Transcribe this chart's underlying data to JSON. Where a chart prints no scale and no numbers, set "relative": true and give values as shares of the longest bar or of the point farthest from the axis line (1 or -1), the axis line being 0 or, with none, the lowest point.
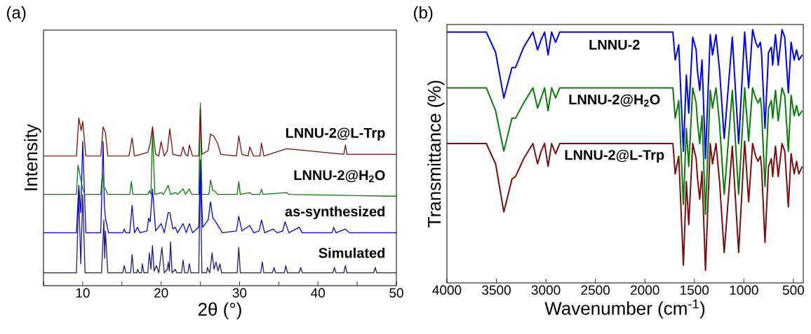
{
  "chart_data": [
    {
      "type": "line",
      "relative": true,
      "xlabel": "2θ (°)",
      "ylabel": "Intensity",
      "annotations": [
        "(a)"
      ],
      "xlim": [
        5,
        50
      ],
      "xticks": [
        {
          "value": 5,
          "label": null
        },
        10,
        {
          "value": 15,
          "label": null
        },
        20,
        {
          "value": 25,
          "label": null
        },
        30,
        {
          "value": 35,
          "label": null
        },
        40,
        {
          "value": 45,
          "label": null
        },
        50
      ],
      "series": [
        {
          "name": "Simulated",
          "color": "#1b1b80",
          "x": [
            5,
            9.2,
            9.5,
            9.75,
            10.0,
            10.3,
            12.4,
            12.7,
            12.8,
            12.9,
            13.2,
            15.1,
            15.3,
            15.5,
            16.1,
            16.3,
            16.5,
            16.9,
            17.0,
            17.2,
            17.5,
            17.6,
            17.8,
            18.3,
            18.5,
            18.7,
            18.9,
            19.1,
            19.4,
            19.7,
            20.1,
            20.4,
            20.8,
            20.9,
            21.05,
            21.2,
            21.4,
            21.8,
            22.0,
            22.6,
            22.8,
            23.0,
            23.4,
            23.6,
            23.8,
            24.8,
            25.0,
            25.2,
            25.8,
            25.9,
            26.2,
            26.5,
            26.75,
            27.0,
            27.25,
            27.5,
            27.7,
            29.7,
            29.9,
            30.1,
            32.7,
            32.9,
            33.1,
            34.2,
            34.4,
            34.6,
            35.7,
            35.9,
            36.1,
            37.6,
            37.8,
            38.0,
            41.9,
            42.1,
            42.3,
            43.3,
            43.5,
            43.7,
            47.1,
            47.3,
            47.5,
            50
          ],
          "values": [
            0.07,
            0.07,
            0.5,
            0.12,
            0.5,
            0.07,
            0.07,
            0.36,
            0.15,
            0.3,
            0.07,
            0.07,
            0.11,
            0.07,
            0.07,
            0.17,
            0.07,
            0.07,
            0.09,
            0.07,
            0.07,
            0.12,
            0.07,
            0.07,
            0.18,
            0.09,
            0.22,
            0.08,
            0.11,
            0.07,
            0.21,
            0.07,
            0.09,
            0.13,
            0.08,
            0.24,
            0.07,
            0.09,
            0.07,
            0.07,
            0.14,
            0.07,
            0.07,
            0.12,
            0.07,
            0.07,
            0.69,
            0.07,
            0.07,
            0.1,
            0.07,
            0.18,
            0.09,
            0.13,
            0.08,
            0.12,
            0.07,
            0.07,
            0.21,
            0.07,
            0.07,
            0.13,
            0.07,
            0.07,
            0.1,
            0.07,
            0.07,
            0.11,
            0.07,
            0.07,
            0.1,
            0.07,
            0.07,
            0.1,
            0.07,
            0.07,
            0.11,
            0.07,
            0.07,
            0.1,
            0.07,
            0.07
          ]
        },
        {
          "name": "as-synthesized",
          "color": "#0000ff",
          "x": [
            5,
            9.2,
            9.5,
            9.75,
            10.0,
            10.4,
            12.3,
            12.6,
            12.75,
            12.9,
            13.3,
            15.1,
            15.3,
            15.5,
            16.0,
            16.3,
            16.6,
            17.0,
            17.3,
            18.2,
            18.4,
            18.6,
            18.9,
            19.3,
            20.0,
            20.4,
            20.9,
            21.1,
            21.5,
            21.8,
            22.1,
            22.8,
            23.2,
            23.6,
            24.0,
            24.8,
            25.0,
            25.3,
            26.0,
            26.3,
            26.6,
            26.8,
            27.4,
            27.8,
            29.6,
            29.9,
            30.3,
            31.3,
            31.8,
            32.5,
            32.8,
            33.2,
            34.3,
            34.8,
            35.5,
            35.8,
            36.3,
            37.6,
            38.0,
            41.8,
            42.0,
            42.3,
            43.5,
            44.0,
            50
          ],
          "values": [
            0.29,
            0.29,
            0.55,
            0.4,
            0.79,
            0.29,
            0.29,
            0.79,
            0.45,
            0.37,
            0.29,
            0.29,
            0.31,
            0.29,
            0.29,
            0.44,
            0.29,
            0.32,
            0.29,
            0.3,
            0.37,
            0.35,
            0.53,
            0.3,
            0.34,
            0.29,
            0.4,
            0.4,
            0.31,
            0.32,
            0.29,
            0.34,
            0.29,
            0.34,
            0.29,
            0.32,
            0.68,
            0.32,
            0.36,
            0.46,
            0.37,
            0.36,
            0.32,
            0.29,
            0.3,
            0.38,
            0.3,
            0.33,
            0.29,
            0.3,
            0.36,
            0.29,
            0.31,
            0.29,
            0.3,
            0.35,
            0.29,
            0.32,
            0.29,
            0.29,
            0.32,
            0.29,
            0.31,
            0.29,
            0.29
          ]
        },
        {
          "name": "LNNU-2@H$_{2}$O",
          "color": "#0b7b0b",
          "x": [
            5,
            9.2,
            9.4,
            9.6,
            10.0,
            10.3,
            12.3,
            12.5,
            12.7,
            12.9,
            13.2,
            16.0,
            16.2,
            16.4,
            18.3,
            18.5,
            18.7,
            18.9,
            19.2,
            20.0,
            20.3,
            20.9,
            21.2,
            21.8,
            22.1,
            22.8,
            23.1,
            23.6,
            23.9,
            24.8,
            25.0,
            25.2,
            26.1,
            26.3,
            26.6,
            26.8,
            27.2,
            29.7,
            29.9,
            30.1,
            31.3,
            31.6,
            32.6,
            32.8,
            33.0,
            36.0,
            36.3,
            50
          ],
          "values": [
            0.5,
            0.5,
            0.66,
            0.62,
            0.53,
            0.5,
            0.5,
            0.61,
            0.54,
            0.53,
            0.5,
            0.5,
            0.57,
            0.5,
            0.5,
            0.52,
            0.5,
            0.85,
            0.5,
            0.51,
            0.5,
            0.55,
            0.5,
            0.51,
            0.5,
            0.53,
            0.5,
            0.53,
            0.5,
            0.5,
            1.0,
            0.5,
            0.5,
            0.58,
            0.52,
            0.52,
            0.5,
            0.5,
            0.57,
            0.5,
            0.51,
            0.5,
            0.5,
            0.53,
            0.5,
            0.51,
            0.5,
            0.49
          ]
        },
        {
          "name": "LNNU-2@L-Trp",
          "color": "#7b0f0f",
          "x": [
            5,
            9.2,
            9.5,
            9.8,
            10.0,
            10.4,
            12.3,
            12.6,
            12.9,
            13.2,
            15.9,
            16.3,
            16.6,
            18.3,
            18.6,
            18.9,
            19.3,
            19.7,
            20.0,
            20.4,
            20.8,
            21.1,
            21.5,
            22.5,
            22.8,
            23.1,
            23.4,
            23.6,
            24.0,
            24.8,
            25.0,
            25.2,
            26.0,
            26.3,
            26.7,
            27.2,
            27.6,
            29.6,
            29.9,
            30.3,
            31.1,
            31.3,
            31.8,
            32.6,
            32.8,
            33.1,
            36.0,
            43.3,
            43.5,
            43.7,
            50
          ],
          "values": [
            0.71,
            0.71,
            0.92,
            0.85,
            0.9,
            0.71,
            0.71,
            0.87,
            0.84,
            0.71,
            0.71,
            0.81,
            0.71,
            0.73,
            0.78,
            0.87,
            0.72,
            0.71,
            0.79,
            0.71,
            0.74,
            0.86,
            0.72,
            0.71,
            0.76,
            0.72,
            0.71,
            0.77,
            0.71,
            0.71,
            0.97,
            0.72,
            0.74,
            0.83,
            0.82,
            0.78,
            0.72,
            0.71,
            0.82,
            0.72,
            0.71,
            0.76,
            0.71,
            0.71,
            0.78,
            0.71,
            0.75,
            0.72,
            0.77,
            0.72,
            0.72
          ]
        }
      ]
    },
    {
      "type": "line",
      "relative": true,
      "xlabel": "Wavenumber (cm$^{-1}$)",
      "ylabel": "Transmittance (%)",
      "annotations": [
        "(b)"
      ],
      "xlim": [
        4000,
        400
      ],
      "xticks": [
        4000,
        3500,
        3000,
        2500,
        2000,
        1500,
        1000,
        500
      ],
      "x": [
        4000,
        3602,
        3508,
        3425,
        3343,
        3307,
        3225,
        3131,
        3084,
        3048,
        3013,
        2978,
        2942,
        2902,
        2860,
        1717,
        1694,
        1658,
        1611,
        1581,
        1557,
        1517,
        1482,
        1470,
        1446,
        1423,
        1388,
        1340,
        1317,
        1282,
        1246,
        1199,
        1117,
        1053,
        992,
        952,
        912,
        881,
        857,
        834,
        822,
        787,
        751,
        723,
        709,
        681,
        653,
        615,
        587,
        551,
        523,
        492,
        468,
        445,
        410
      ],
      "series": [
        {
          "name": "LNNU-2",
          "color": "#0000ff",
          "values": [
            0.99,
            0.99,
            0.91,
            0.73,
            0.85,
            0.85,
            0.93,
            0.99,
            0.92,
            0.96,
            0.99,
            0.9,
            0.99,
            0.95,
            0.99,
            0.99,
            0.88,
            0.94,
            0.52,
            0.82,
            0.67,
            0.97,
            0.92,
            0.84,
            0.76,
            0.88,
            0.49,
            0.98,
            0.9,
            0.98,
            0.84,
            0.57,
            0.97,
            0.55,
            0.99,
            0.77,
            1.0,
            0.95,
            0.93,
            0.95,
            0.91,
            0.61,
            0.91,
            0.93,
            0.86,
            0.98,
            0.86,
            1.0,
            0.97,
            0.75,
            0.95,
            0.88,
            0.92,
            0.88,
            0.9
          ]
        },
        {
          "name": "LNNU-2@H$_{2}$O",
          "color": "#0b7b0b",
          "values": [
            0.77,
            0.77,
            0.68,
            0.52,
            0.65,
            0.65,
            0.71,
            0.77,
            0.69,
            0.73,
            0.77,
            0.68,
            0.77,
            0.73,
            0.77,
            0.77,
            0.65,
            0.72,
            0.31,
            0.61,
            0.46,
            0.77,
            0.71,
            0.64,
            0.55,
            0.66,
            0.27,
            0.76,
            0.69,
            0.77,
            0.63,
            0.35,
            0.76,
            0.35,
            0.77,
            0.56,
            0.77,
            0.73,
            0.71,
            0.73,
            0.69,
            0.38,
            0.69,
            0.72,
            0.65,
            0.76,
            0.64,
            0.77,
            0.74,
            0.52,
            0.74,
            0.66,
            0.7,
            0.66,
            0.68
          ]
        },
        {
          "name": "LNNU-2@L-Trp",
          "color": "#7b0f0f",
          "values": [
            0.55,
            0.55,
            0.47,
            0.28,
            0.41,
            0.42,
            0.49,
            0.55,
            0.47,
            0.52,
            0.55,
            0.46,
            0.55,
            0.51,
            0.55,
            0.55,
            0.43,
            0.5,
            0.07,
            0.4,
            0.23,
            0.55,
            0.49,
            0.42,
            0.33,
            0.44,
            0.05,
            0.55,
            0.47,
            0.55,
            0.4,
            0.12,
            0.54,
            0.12,
            0.56,
            0.32,
            0.55,
            0.5,
            0.48,
            0.5,
            0.46,
            0.16,
            0.46,
            0.49,
            0.42,
            0.54,
            0.42,
            0.55,
            0.52,
            0.3,
            0.51,
            0.43,
            0.48,
            0.43,
            0.46
          ]
        }
      ]
    }
  ]
}
